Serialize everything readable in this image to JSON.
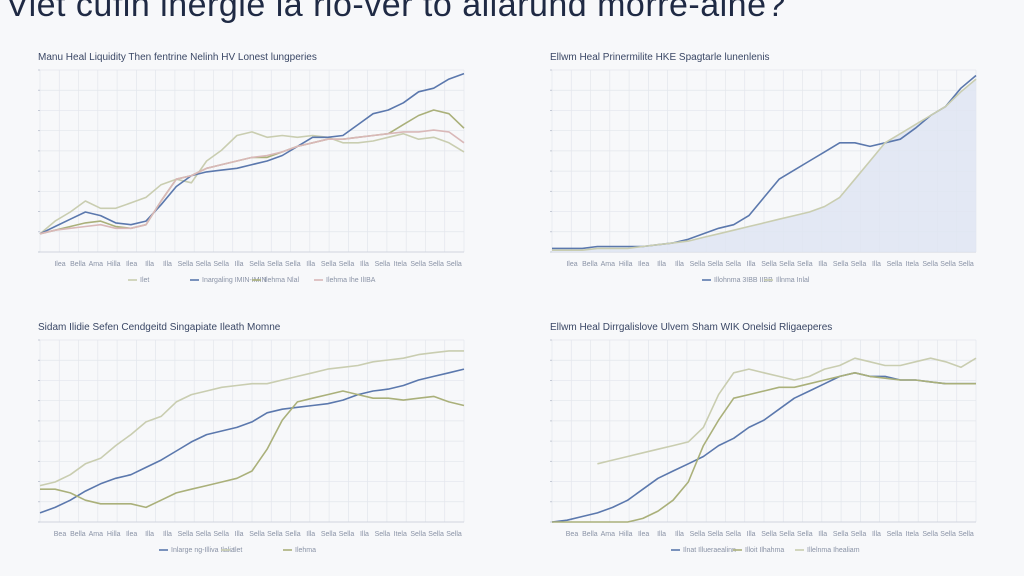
{
  "page": {
    "title": "Viet cufin inergie la rio-ver to allarund morre-aine?"
  },
  "chart_data": [
    {
      "type": "line",
      "title": "Manu Heal Liquidity Then fentrine Nelinh HV Lonest lungperies",
      "grid": true,
      "legend_position": "bottom",
      "x_ticks": [
        "Ilea",
        "Bella",
        "Ama",
        "Hilla",
        "Ilea",
        "Illa",
        "Illa",
        "Sella",
        "Sella",
        "Sella",
        "Illa",
        "Sella",
        "Sella",
        "Sella",
        "Illa",
        "Sella",
        "Sella",
        "Illa",
        "Sella",
        "Itela",
        "Sella",
        "Sella",
        "Sella"
      ],
      "ylim": [
        0,
        100
      ],
      "x": [
        0,
        1,
        2,
        3,
        4,
        5,
        6,
        7,
        8,
        9,
        10,
        11,
        12,
        13,
        14,
        15,
        16,
        17,
        18,
        19,
        20,
        21,
        22,
        23,
        24,
        25,
        26,
        27,
        28
      ],
      "series": [
        {
          "name": "Ilet",
          "color": "#c9cdb0",
          "values": [
            10,
            17,
            22,
            28,
            24,
            24,
            27,
            30,
            37,
            40,
            38,
            50,
            56,
            64,
            66,
            63,
            64,
            63,
            64,
            63,
            60,
            60,
            61,
            63,
            65,
            62,
            63,
            60,
            55
          ]
        },
        {
          "name": "Inargaling IMIN-IMIN",
          "color": "#5b78ad",
          "values": [
            10,
            14,
            18,
            22,
            20,
            16,
            15,
            17,
            26,
            36,
            42,
            44,
            45,
            46,
            48,
            50,
            53,
            58,
            63,
            63,
            64,
            70,
            76,
            78,
            82,
            88,
            90,
            95,
            98
          ]
        },
        {
          "name": "Ilehma Nlal",
          "color": "#aab07a",
          "values": [
            10,
            12,
            14,
            16,
            17,
            14,
            13,
            15,
            28,
            40,
            42,
            46,
            48,
            50,
            52,
            52,
            55,
            58,
            60,
            62,
            62,
            63,
            64,
            65,
            70,
            75,
            78,
            76,
            68
          ]
        },
        {
          "name": "Ilehma Ihe IlIBA",
          "color": "#d9b8b8",
          "values": [
            10,
            12,
            13,
            14,
            15,
            13,
            13,
            15,
            28,
            40,
            42,
            46,
            48,
            50,
            52,
            53,
            55,
            58,
            60,
            62,
            62,
            63,
            64,
            65,
            66,
            66,
            67,
            66,
            60
          ]
        }
      ]
    },
    {
      "type": "area",
      "title": "Ellwm Heal Prinermilite HKE Spagtarle lunenlenis",
      "grid": true,
      "legend_position": "bottom",
      "x_ticks": [
        "Ilea",
        "Bella",
        "Ama",
        "Hilla",
        "Ilea",
        "Illa",
        "Illa",
        "Sella",
        "Sella",
        "Sella",
        "Illa",
        "Sella",
        "Sella",
        "Sella",
        "Illa",
        "Sella",
        "Sella",
        "Illa",
        "Sella",
        "Itela",
        "Sella",
        "Sella",
        "Sella"
      ],
      "ylim": [
        0,
        100
      ],
      "x": [
        0,
        1,
        2,
        3,
        4,
        5,
        6,
        7,
        8,
        9,
        10,
        11,
        12,
        13,
        14,
        15,
        16,
        17,
        18,
        19,
        20,
        21,
        22,
        23,
        24,
        25,
        26,
        27,
        28
      ],
      "series": [
        {
          "name": "Illohnma 3IBB IIBB",
          "color": "#5b78ad",
          "values": [
            2,
            2,
            2,
            3,
            3,
            3,
            3,
            4,
            5,
            7,
            10,
            13,
            15,
            20,
            30,
            40,
            45,
            50,
            55,
            60,
            60,
            58,
            60,
            62,
            68,
            75,
            80,
            90,
            97
          ]
        },
        {
          "name": "Illnma Inlal",
          "color": "#c9cdb0",
          "fill": "#dfe5f2",
          "values": [
            1,
            1,
            1,
            2,
            2,
            2,
            3,
            4,
            5,
            6,
            8,
            10,
            12,
            14,
            16,
            18,
            20,
            22,
            25,
            30,
            40,
            50,
            60,
            65,
            70,
            75,
            80,
            88,
            95
          ]
        }
      ]
    },
    {
      "type": "line",
      "title": "Sidam Ilidie Sefen Cendgeitd Singapiate Ileath Momne",
      "grid": true,
      "legend_position": "bottom",
      "x_ticks": [
        "Bea",
        "Bella",
        "Ama",
        "Hilla",
        "Ilea",
        "Illa",
        "Illa",
        "Sella",
        "Sella",
        "Sella",
        "Illa",
        "Sella",
        "Sella",
        "Sella",
        "Illa",
        "Sella",
        "Sella",
        "Illa",
        "Sella",
        "Itela",
        "Sella",
        "Sella",
        "Sella"
      ],
      "ylim": [
        0,
        100
      ],
      "x": [
        0,
        1,
        2,
        3,
        4,
        5,
        6,
        7,
        8,
        9,
        10,
        11,
        12,
        13,
        14,
        15,
        16,
        17,
        18,
        19,
        20,
        21,
        22,
        23,
        24,
        25,
        26,
        27,
        28
      ],
      "series": [
        {
          "name": "Inlarge ng-Illiva Ilalia",
          "color": "#5b78ad",
          "values": [
            5,
            8,
            12,
            17,
            21,
            24,
            26,
            30,
            34,
            39,
            44,
            48,
            50,
            52,
            55,
            60,
            62,
            63,
            64,
            65,
            67,
            70,
            72,
            73,
            75,
            78,
            80,
            82,
            84
          ]
        },
        {
          "name": "Ilet",
          "color": "#c9cdb0",
          "values": [
            20,
            22,
            26,
            32,
            35,
            42,
            48,
            55,
            58,
            66,
            70,
            72,
            74,
            75,
            76,
            76,
            78,
            80,
            82,
            84,
            85,
            86,
            88,
            89,
            90,
            92,
            93,
            94,
            94
          ]
        },
        {
          "name": "Ilehma",
          "color": "#aab07a",
          "values": [
            18,
            18,
            16,
            12,
            10,
            10,
            10,
            8,
            12,
            16,
            18,
            20,
            22,
            24,
            28,
            40,
            56,
            66,
            68,
            70,
            72,
            70,
            68,
            68,
            67,
            68,
            69,
            66,
            64
          ]
        }
      ]
    },
    {
      "type": "line",
      "title": "Ellwm Heal Dirrgalislove Ulvem Sham WIK Onelsid Rligaeperes",
      "grid": true,
      "legend_position": "bottom",
      "x_ticks": [
        "Bea",
        "Bella",
        "Ama",
        "Hilla",
        "Ilea",
        "Illa",
        "Illa",
        "Sella",
        "Sella",
        "Sella",
        "Illa",
        "Sella",
        "Sella",
        "Sella",
        "Illa",
        "Sella",
        "Sella",
        "Illa",
        "Sella",
        "Itela",
        "Sella",
        "Sella",
        "Sella"
      ],
      "ylim": [
        0,
        100
      ],
      "x": [
        0,
        1,
        2,
        3,
        4,
        5,
        6,
        7,
        8,
        9,
        10,
        11,
        12,
        13,
        14,
        15,
        16,
        17,
        18,
        19,
        20,
        21,
        22,
        23,
        24,
        25,
        26,
        27,
        28
      ],
      "series": [
        {
          "name": "Ilnat Illueraealinn",
          "color": "#5b78ad",
          "values": [
            0,
            1,
            3,
            5,
            8,
            12,
            18,
            24,
            28,
            32,
            36,
            42,
            46,
            52,
            56,
            62,
            68,
            72,
            76,
            80,
            82,
            80,
            80,
            78,
            78,
            77,
            76,
            76,
            76
          ]
        },
        {
          "name": "Illoit Ilhahma",
          "color": "#aab07a",
          "values": [
            0,
            0,
            0,
            0,
            0,
            0,
            2,
            6,
            12,
            22,
            42,
            56,
            68,
            70,
            72,
            74,
            74,
            76,
            78,
            80,
            82,
            80,
            79,
            78,
            78,
            77,
            76,
            76,
            76
          ]
        },
        {
          "name": "Illelnma Ihealiam",
          "color": "#c9cdb0",
          "values": [
            null,
            null,
            null,
            32,
            34,
            36,
            38,
            40,
            42,
            44,
            52,
            70,
            82,
            84,
            82,
            80,
            78,
            80,
            84,
            86,
            90,
            88,
            86,
            86,
            88,
            90,
            88,
            85,
            90
          ]
        }
      ]
    }
  ]
}
